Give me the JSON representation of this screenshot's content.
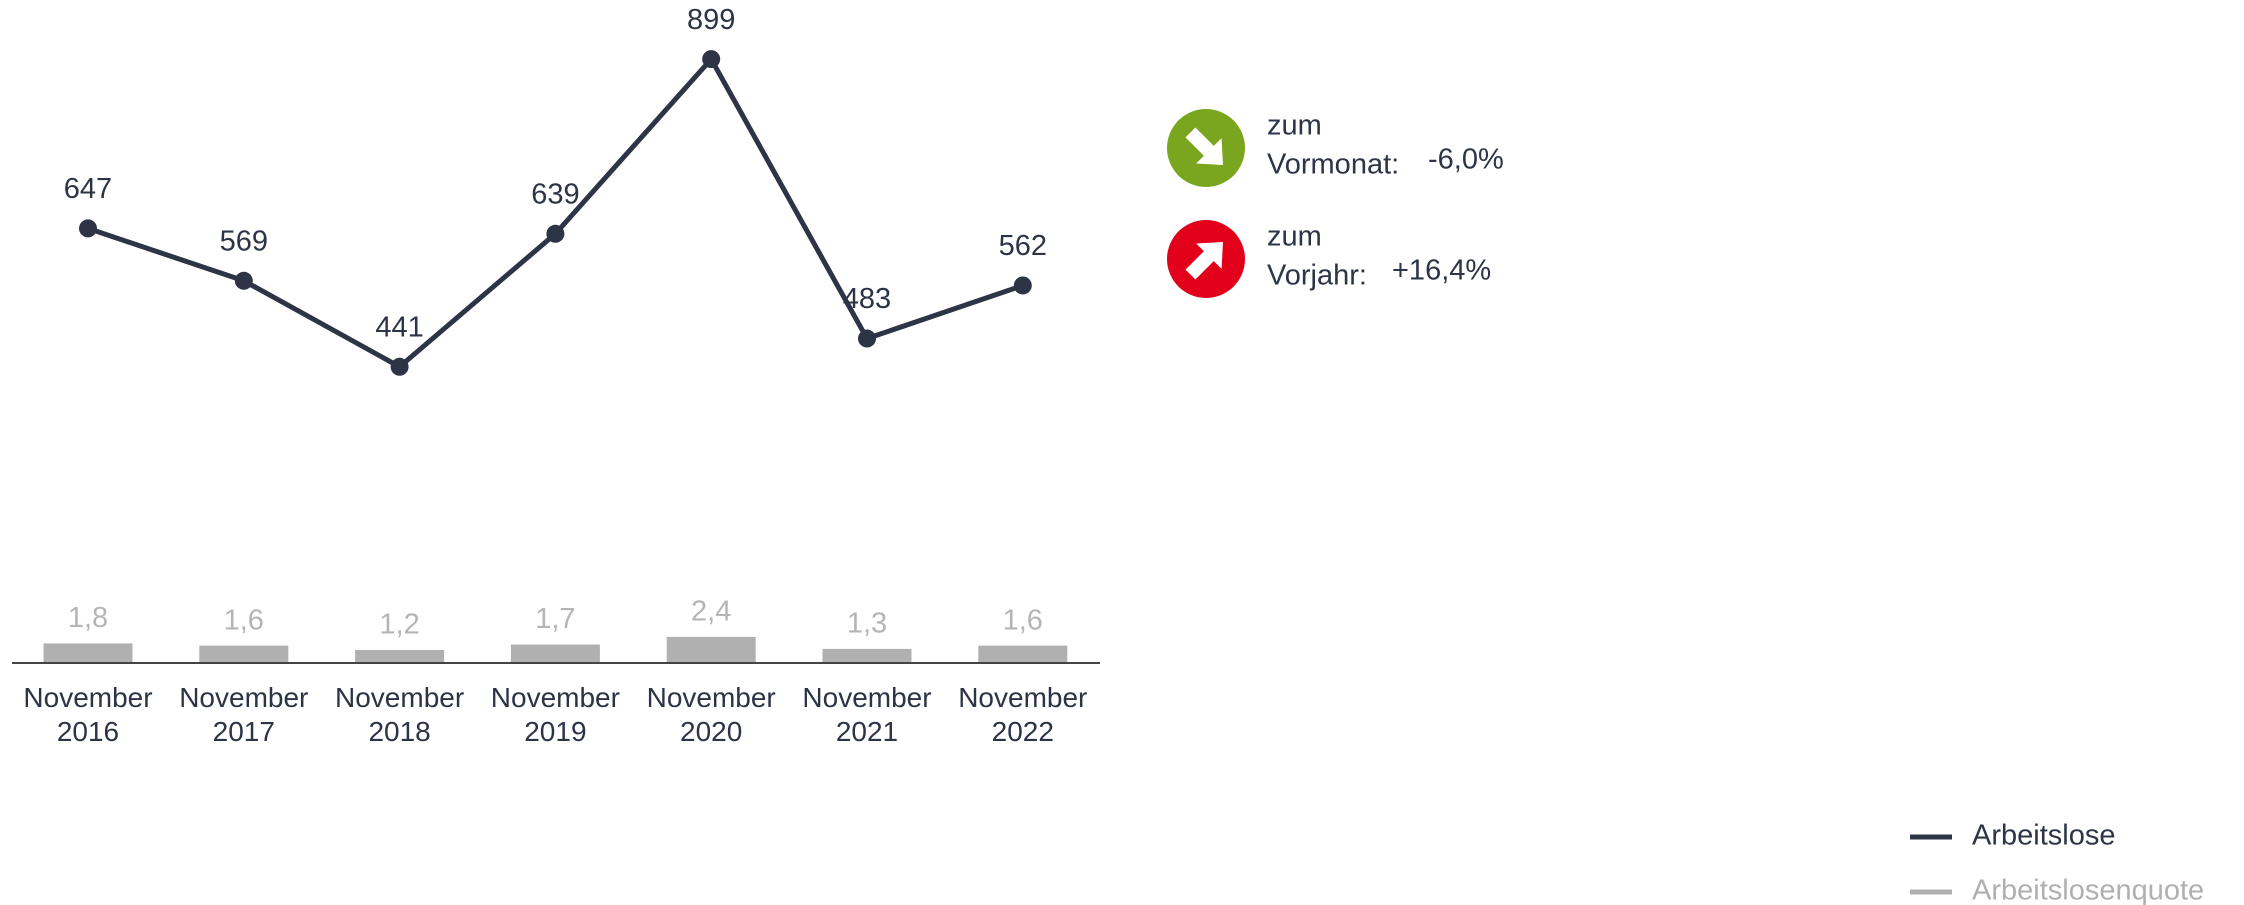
{
  "chart_data": {
    "type": "line_bar",
    "categories": [
      "November 2016",
      "November 2017",
      "November 2018",
      "November 2019",
      "November 2020",
      "November 2021",
      "November 2022"
    ],
    "series": [
      {
        "name": "Arbeitslose",
        "color": "#2d3446",
        "type": "line",
        "values": [
          647,
          569,
          441,
          639,
          899,
          483,
          562
        ]
      },
      {
        "name": "Arbeitslosenquote",
        "color": "#b0b0b0",
        "type": "bar",
        "axis": "y2",
        "values": [
          1.8,
          1.6,
          1.2,
          1.7,
          2.4,
          1.3,
          1.6
        ],
        "value_labels": [
          "1,8",
          "1,6",
          "1,2",
          "1,7",
          "2,4",
          "1,3",
          "1,6"
        ]
      }
    ],
    "ylim": [
      0,
      987
    ],
    "y2lim": [
      0,
      61
    ],
    "legend": "bottom-right"
  },
  "indicators": [
    {
      "line1": "zum",
      "line2": "Vormonat:",
      "value": "-6,0%",
      "color": "#7aa51f",
      "direction": "down"
    },
    {
      "line1": "zum",
      "line2": "Vorjahr:",
      "value": "+16,4%",
      "color": "#e2001a",
      "direction": "up"
    }
  ]
}
